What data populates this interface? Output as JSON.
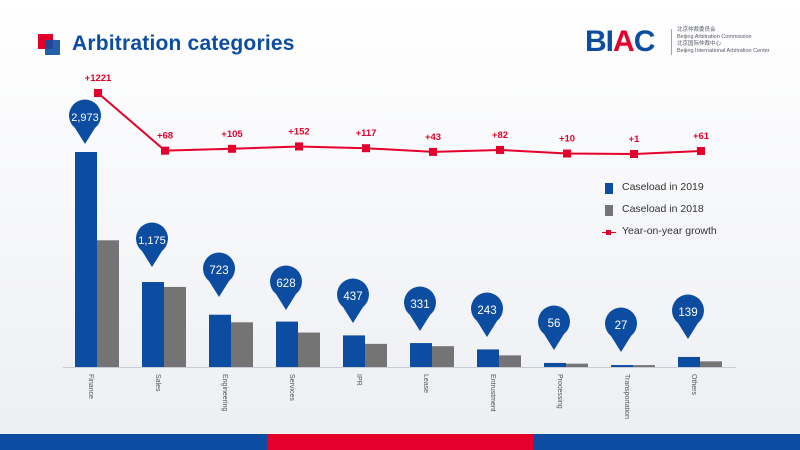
{
  "header": {
    "title": "Arbitration categories",
    "logo": {
      "mark_b": "B",
      "mark_i": "I",
      "mark_a": "A",
      "mark_c": "C",
      "line1": "北京仲裁委员会",
      "line2": "Beijing Arbitration Commission",
      "line3": "北京国际仲裁中心",
      "line4": "Beijing International Arbitration Center"
    }
  },
  "legend": {
    "s2019": "Caseload in 2019",
    "s2018": "Caseload in 2018",
    "growth": "Year-on-year growth"
  },
  "colors": {
    "bar2019": "#0d4da1",
    "bar2018": "#747474",
    "growth": "#e4002b",
    "accent_red": "#e4002b",
    "accent_blue": "#0d4da1"
  },
  "chart_data": {
    "type": "bar",
    "categories": [
      "Finance",
      "Sales",
      "Engineering",
      "Services",
      "IPR",
      "Lease",
      "Entrustment",
      "Processing",
      "Transportation",
      "Others"
    ],
    "series": [
      {
        "name": "Caseload in 2019",
        "values": [
          2973,
          1175,
          723,
          628,
          437,
          331,
          243,
          56,
          27,
          139
        ]
      },
      {
        "name": "Caseload in 2018",
        "values": [
          1752,
          1107,
          618,
          476,
          320,
          288,
          161,
          46,
          26,
          78
        ]
      }
    ],
    "value_labels": [
      "2,973",
      "1,175",
      "723",
      "628",
      "437",
      "331",
      "243",
      "56",
      "27",
      "139"
    ],
    "growth": {
      "name": "Year-on-year growth",
      "values": [
        1221,
        68,
        105,
        152,
        117,
        43,
        82,
        10,
        1,
        61
      ],
      "labels": [
        "+1221",
        "+68",
        "+105",
        "+152",
        "+117",
        "+43",
        "+82",
        "+10",
        "+1",
        "+61"
      ]
    },
    "legend_position": "right",
    "grid": false
  }
}
